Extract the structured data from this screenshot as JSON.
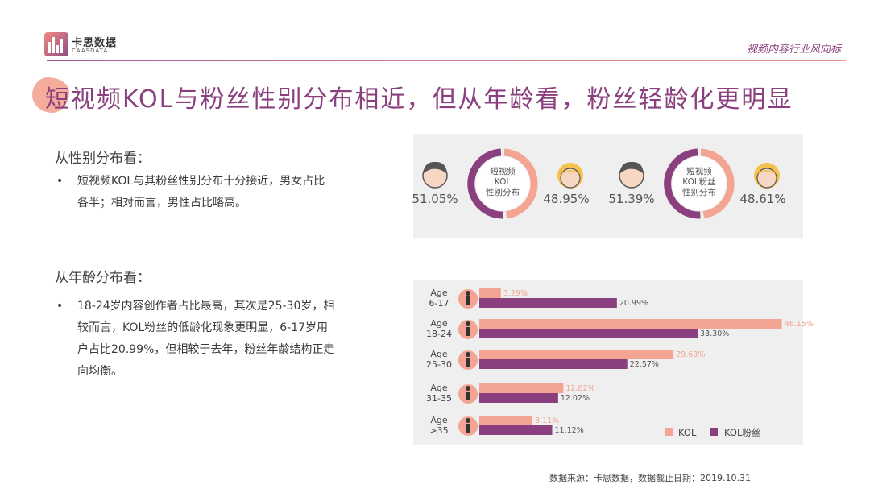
{
  "brand": {
    "name": "卡思数据",
    "sub": "CAASDATA",
    "primary_color": "#8a3f7e",
    "accent_color": "#f3a492"
  },
  "header": {
    "tag": "视频内容行业风向标"
  },
  "title": "短视频KOL与粉丝性别分布相近，但从年龄看，粉丝轻龄化更明显",
  "gender_section": {
    "heading": "从性别分布看：",
    "bullet": [
      "短视频KOL与其粉丝性别分布十分接近，男女占比",
      "各半；相对而言，男性占比略高。"
    ]
  },
  "age_section": {
    "heading": "从年龄分布看：",
    "bullet": [
      "18-24岁内容创作者占比最高，其次是25-30岁，相",
      "较而言，KOL粉丝的低龄化现象更明显，6-17岁用",
      "户占比20.99%，但相较于去年，粉丝年龄结构正走",
      "向均衡。"
    ]
  },
  "gender_charts": [
    {
      "label_lines": [
        "短视频",
        "KOL",
        "性别分布"
      ],
      "male": "51.05%",
      "female": "48.95%",
      "male_value": 51.05,
      "female_value": 48.95
    },
    {
      "label_lines": [
        "短视频",
        "KOL粉丝",
        "性别分布"
      ],
      "male": "51.39%",
      "female": "48.61%",
      "male_value": 51.39,
      "female_value": 48.61
    }
  ],
  "chart_data": {
    "type": "bar",
    "orientation": "horizontal",
    "categories": [
      [
        "Age",
        "6-17"
      ],
      [
        "Age",
        "18-24"
      ],
      [
        "Age",
        "25-30"
      ],
      [
        "Age",
        "31-35"
      ],
      [
        "Age",
        ">35"
      ]
    ],
    "series": [
      {
        "name": "KOL",
        "color": "#f3a492",
        "values": [
          3.29,
          46.15,
          29.63,
          12.82,
          8.11
        ],
        "labels": [
          "3.29%",
          "46.15%",
          "29.63%",
          "12.82%",
          "8.11%"
        ]
      },
      {
        "name": "KOL粉丝",
        "color": "#8a3f7e",
        "values": [
          20.99,
          33.3,
          22.57,
          12.02,
          11.12
        ],
        "labels": [
          "20.99%",
          "33.30%",
          "22.57%",
          "12.02%",
          "11.12%"
        ]
      }
    ],
    "legend_position": "bottom-right",
    "grid": false,
    "xlim": [
      0,
      50
    ]
  },
  "source": "数据来源：卡思数据，数据截止日期：2019.10.31"
}
